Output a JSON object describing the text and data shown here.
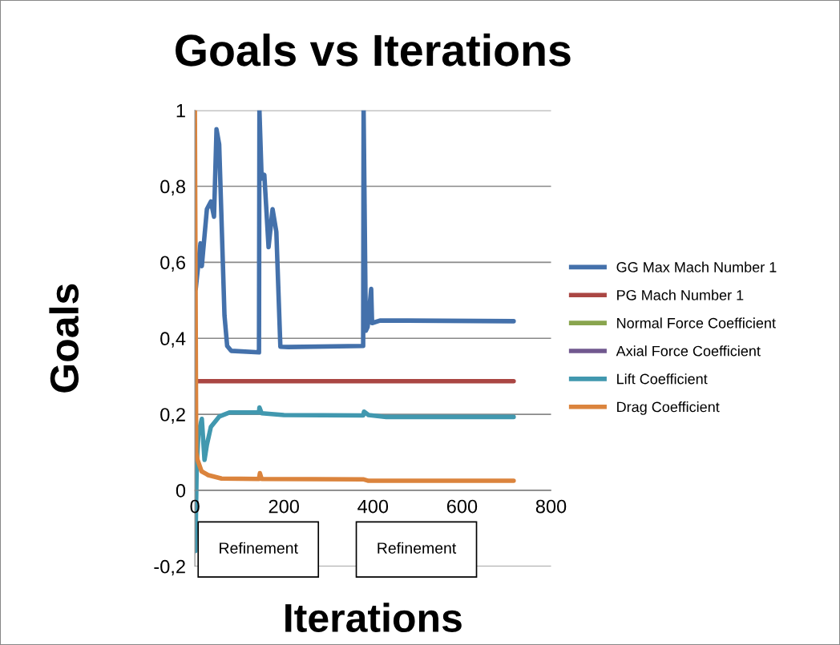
{
  "chart_data": {
    "type": "line",
    "title": "Goals vs Iterations",
    "xlabel": "Iterations",
    "ylabel": "Goals",
    "xlim": [
      0,
      800
    ],
    "xticks": [
      0,
      200,
      400,
      600,
      800
    ],
    "ylim": [
      -0.2,
      1
    ],
    "yticks": [
      {
        "value": -0.2,
        "label": "-0,2"
      },
      0,
      {
        "value": 0.2,
        "label": "0,2"
      },
      {
        "value": 0.4,
        "label": "0,4"
      },
      {
        "value": 0.6,
        "label": "0,6"
      },
      {
        "value": 0.8,
        "label": "0,8"
      },
      1
    ],
    "grid": "y",
    "legend": "right",
    "marker": "none",
    "line_style": "solid",
    "annotations": [
      "Refinement",
      "Refinement"
    ],
    "series": [
      {
        "name": "GG Max Mach Number 1",
        "color": "#4471ab",
        "x": [
          2,
          12.6,
          15.6,
          27,
          36,
          43,
          48.6,
          54.6,
          66.5,
          72.5,
          81.5,
          144,
          145,
          150,
          156,
          165.5,
          174.5,
          183,
          192,
          210,
          378,
          379,
          384,
          388,
          396,
          398,
          417,
          716
        ],
        "values": [
          0.53,
          0.65,
          0.59,
          0.74,
          0.76,
          0.72,
          0.95,
          0.91,
          0.46,
          0.38,
          0.367,
          0.363,
          1,
          0.82,
          0.83,
          0.64,
          0.74,
          0.68,
          0.378,
          0.377,
          0.38,
          1,
          0.42,
          0.43,
          0.53,
          0.44,
          0.447,
          0.445
        ]
      },
      {
        "name": "PG Mach Number 1",
        "color": "#aa4643",
        "x": [
          5,
          716
        ],
        "values": [
          0.287,
          0.287
        ]
      },
      {
        "name": "Normal Force Coefficient",
        "color": "#89a54e"
      },
      {
        "name": "Axial Force Coefficient",
        "color": "#71588f"
      },
      {
        "name": "Lift Coefficient",
        "color": "#4198af",
        "x": [
          1,
          2,
          4,
          8,
          15.6,
          21.6,
          27,
          36,
          54.6,
          78.6,
          144,
          145,
          150,
          200,
          378,
          380,
          390,
          430,
          716
        ],
        "values": [
          -0.16,
          -0.1,
          0.06,
          0.15,
          0.188,
          0.08,
          0.12,
          0.167,
          0.194,
          0.205,
          0.205,
          0.218,
          0.203,
          0.198,
          0.197,
          0.207,
          0.198,
          0.193,
          0.193
        ]
      },
      {
        "name": "Drag Coefficient",
        "color": "#db843d",
        "x": [
          0,
          3,
          6,
          15,
          30,
          60,
          144,
          146,
          150,
          378,
          390,
          716
        ],
        "values": [
          1,
          0.1,
          0.08,
          0.05,
          0.04,
          0.031,
          0.03,
          0.045,
          0.03,
          0.029,
          0.025,
          0.025
        ]
      }
    ]
  }
}
